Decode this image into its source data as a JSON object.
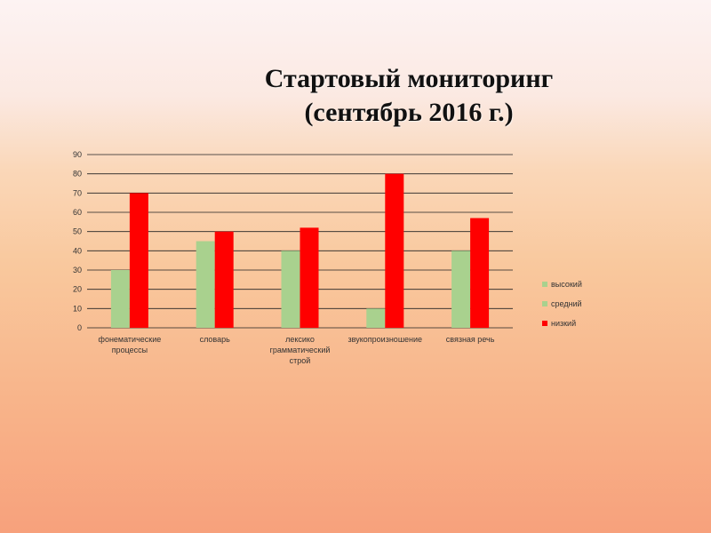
{
  "slide": {
    "title_line1": "Стартовый мониторинг",
    "title_line2": "(сентябрь 2016 г.)"
  },
  "chart_data": {
    "type": "bar",
    "title": "",
    "xlabel": "",
    "ylabel": "",
    "ylim": [
      0,
      90
    ],
    "yticks": [
      0,
      10,
      20,
      30,
      40,
      50,
      60,
      70,
      80,
      90
    ],
    "grid": true,
    "legend_position": "right",
    "categories": [
      [
        "фонематические",
        "процессы"
      ],
      [
        "словарь"
      ],
      [
        "лексико",
        "грамматический",
        "строй"
      ],
      [
        "звукопроизношение"
      ],
      [
        "связная речь"
      ]
    ],
    "series": [
      {
        "name": "высокий",
        "color": "#ffffff",
        "values": [
          0,
          0,
          0,
          0,
          0
        ]
      },
      {
        "name": "средний",
        "color": "#a9d18e",
        "values": [
          30,
          45,
          40,
          10,
          40
        ]
      },
      {
        "name": "низкий",
        "color": "#ff0000",
        "values": [
          70,
          50,
          52,
          80,
          57
        ]
      }
    ]
  }
}
